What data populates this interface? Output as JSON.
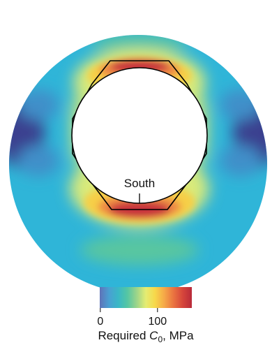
{
  "annotation": {
    "label": "South"
  },
  "colorbar": {
    "ticks": [
      {
        "label": "0",
        "value": 0
      },
      {
        "label": "100",
        "value": 100
      }
    ],
    "range": [
      -1,
      160
    ],
    "colormap": [
      "#5f73b8",
      "#4a9fd2",
      "#39b8c6",
      "#55c6a3",
      "#9bd48a",
      "#e5ec72",
      "#f7d84a",
      "#f5a848",
      "#ea7440",
      "#d6463b",
      "#b82a3a"
    ],
    "title_prefix": "Required ",
    "title_symbol": "C",
    "title_subscript": "0",
    "title_suffix": ", MPa"
  },
  "colors": {
    "background": "#ffffff",
    "outline": "#000000",
    "stress_low": "#3a3f8f",
    "stress_mid": "#2fb5d8",
    "stress_high": "#c72c3a"
  }
}
